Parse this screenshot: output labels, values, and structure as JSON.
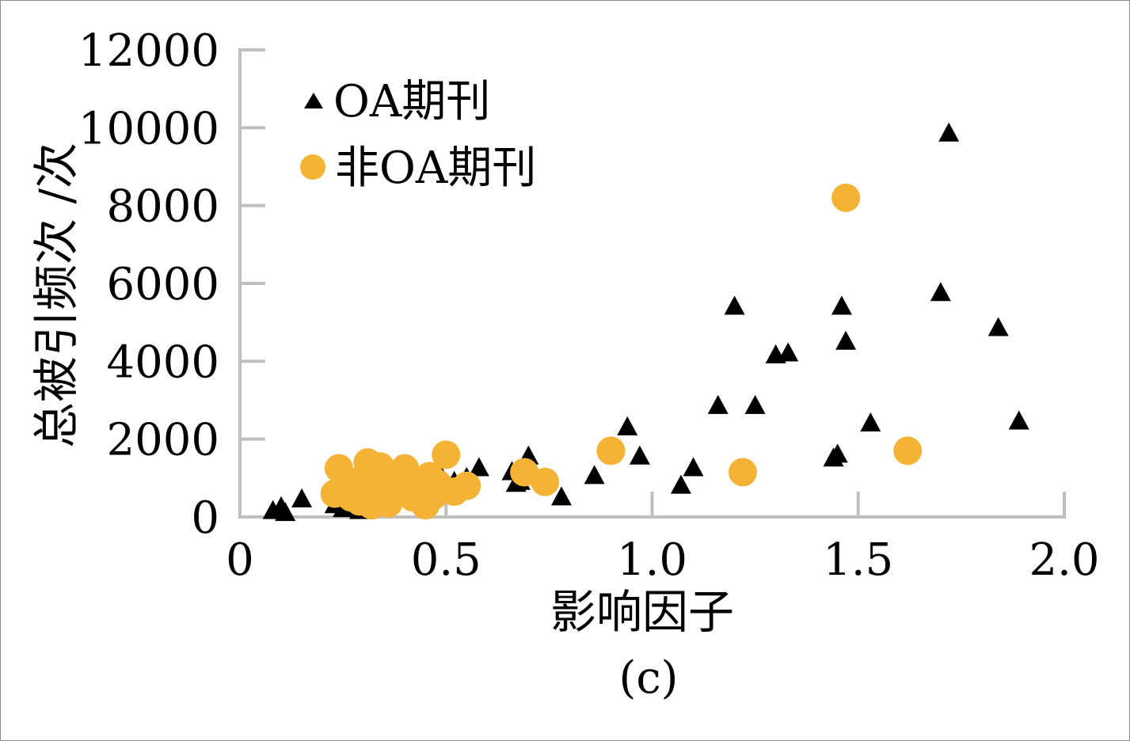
{
  "chart_data": {
    "type": "scatter",
    "xlabel": "影响因子",
    "ylabel": "总被引频次 /次",
    "caption": "(c)",
    "xlim": [
      0,
      2.0
    ],
    "ylim": [
      0,
      12000
    ],
    "x_ticks": [
      "0",
      "0.5",
      "1.0",
      "1.5",
      "2.0"
    ],
    "y_ticks": [
      "0",
      "2000",
      "4000",
      "6000",
      "8000",
      "10000",
      "12000"
    ],
    "legend_position": "top-left",
    "grid": false,
    "series": [
      {
        "name": "OA期刊",
        "marker": "triangle",
        "color": "#000000",
        "points": [
          [
            0.08,
            150
          ],
          [
            0.1,
            250
          ],
          [
            0.11,
            100
          ],
          [
            0.15,
            450
          ],
          [
            0.23,
            300
          ],
          [
            0.25,
            200
          ],
          [
            0.27,
            250
          ],
          [
            0.29,
            150
          ],
          [
            0.31,
            400
          ],
          [
            0.33,
            600
          ],
          [
            0.34,
            300
          ],
          [
            0.35,
            800
          ],
          [
            0.42,
            1000
          ],
          [
            0.45,
            700
          ],
          [
            0.48,
            1200
          ],
          [
            0.52,
            900
          ],
          [
            0.55,
            1000
          ],
          [
            0.58,
            1250
          ],
          [
            0.66,
            1150
          ],
          [
            0.67,
            850
          ],
          [
            0.68,
            900
          ],
          [
            0.7,
            1550
          ],
          [
            0.78,
            500
          ],
          [
            0.86,
            1050
          ],
          [
            0.94,
            2300
          ],
          [
            0.97,
            1550
          ],
          [
            1.07,
            800
          ],
          [
            1.1,
            1250
          ],
          [
            1.16,
            2850
          ],
          [
            1.2,
            5400
          ],
          [
            1.25,
            2850
          ],
          [
            1.3,
            4150
          ],
          [
            1.33,
            4200
          ],
          [
            1.44,
            1500
          ],
          [
            1.45,
            1600
          ],
          [
            1.46,
            5400
          ],
          [
            1.47,
            4500
          ],
          [
            1.53,
            2400
          ],
          [
            1.7,
            5750
          ],
          [
            1.72,
            9850
          ],
          [
            1.84,
            4850
          ],
          [
            1.89,
            2450
          ]
        ]
      },
      {
        "name": "非OA期刊",
        "marker": "circle",
        "color": "#F5B335",
        "points": [
          [
            0.23,
            600
          ],
          [
            0.24,
            1250
          ],
          [
            0.26,
            700
          ],
          [
            0.27,
            500
          ],
          [
            0.28,
            900
          ],
          [
            0.29,
            400
          ],
          [
            0.3,
            600
          ],
          [
            0.31,
            1400
          ],
          [
            0.32,
            300
          ],
          [
            0.33,
            750
          ],
          [
            0.34,
            1300
          ],
          [
            0.36,
            350
          ],
          [
            0.38,
            900
          ],
          [
            0.4,
            1250
          ],
          [
            0.42,
            500
          ],
          [
            0.43,
            700
          ],
          [
            0.44,
            900
          ],
          [
            0.45,
            300
          ],
          [
            0.46,
            1050
          ],
          [
            0.47,
            550
          ],
          [
            0.48,
            850
          ],
          [
            0.5,
            1600
          ],
          [
            0.52,
            650
          ],
          [
            0.55,
            800
          ],
          [
            0.69,
            1150
          ],
          [
            0.74,
            900
          ],
          [
            0.9,
            1700
          ],
          [
            1.22,
            1150
          ],
          [
            1.47,
            8200
          ],
          [
            1.62,
            1700
          ]
        ]
      }
    ]
  }
}
